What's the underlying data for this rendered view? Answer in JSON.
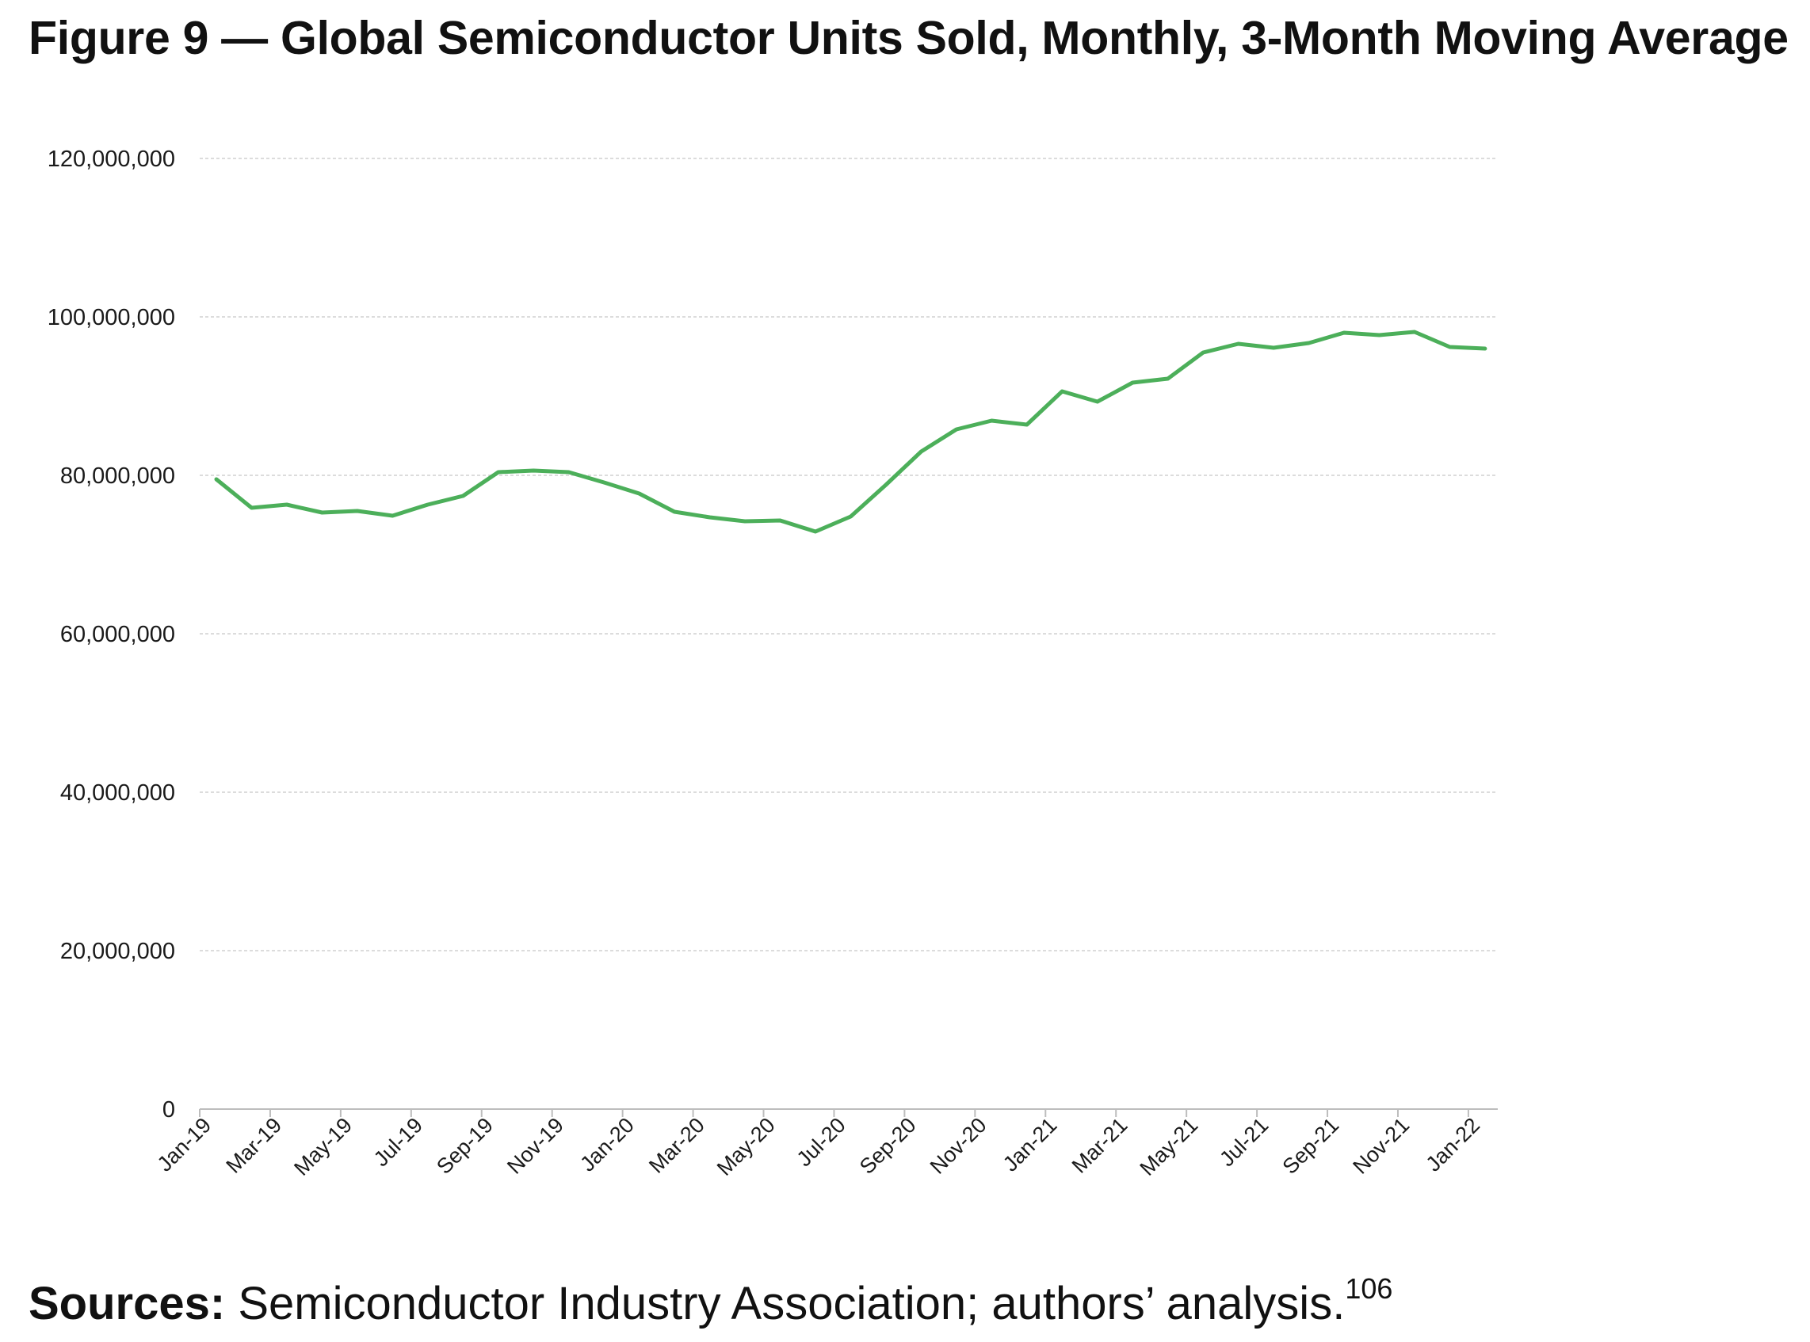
{
  "title": "Figure 9 — Global Semiconductor Units Sold, Monthly, 3-Month Moving Average",
  "sources": {
    "lead": "Sources:",
    "text": " Semiconductor Industry Association; authors’ analysis.",
    "footnote": "106"
  },
  "chart_data": {
    "type": "line",
    "ylim": [
      0,
      120000000
    ],
    "y_ticks": [
      0,
      20000000,
      40000000,
      60000000,
      80000000,
      100000000,
      120000000
    ],
    "y_tick_labels": [
      "0",
      "20,000,000",
      "40,000,000",
      "60,000,000",
      "80,000,000",
      "100,000,000",
      "120,000,000"
    ],
    "x_tick_labels": [
      "Jan-19",
      "Mar-19",
      "May-19",
      "Jul-19",
      "Sep-19",
      "Nov-19",
      "Jan-20",
      "Mar-20",
      "May-20",
      "Jul-20",
      "Sep-20",
      "Nov-20",
      "Jan-21",
      "Mar-21",
      "May-21",
      "Jul-21",
      "Sep-21",
      "Nov-21",
      "Jan-22"
    ],
    "grid": true,
    "line_color": "#4caf5a",
    "series": [
      {
        "x": [
          "Jan-19",
          "Feb-19",
          "Mar-19",
          "Apr-19",
          "May-19",
          "Jun-19",
          "Jul-19",
          "Aug-19",
          "Sep-19",
          "Oct-19",
          "Nov-19",
          "Dec-19",
          "Jan-20",
          "Feb-20",
          "Mar-20",
          "Apr-20",
          "May-20",
          "Jun-20",
          "Jul-20",
          "Aug-20",
          "Sep-20",
          "Oct-20",
          "Nov-20",
          "Dec-20",
          "Jan-21",
          "Feb-21",
          "Mar-21",
          "Apr-21",
          "May-21",
          "Jun-21",
          "Jul-21",
          "Aug-21",
          "Sep-21",
          "Oct-21",
          "Nov-21",
          "Dec-21",
          "Jan-22"
        ],
        "values": [
          79500000,
          75900000,
          76300000,
          75300000,
          75500000,
          74900000,
          76300000,
          77400000,
          80400000,
          80600000,
          80400000,
          79100000,
          77700000,
          75400000,
          74700000,
          74200000,
          74300000,
          72900000,
          74800000,
          78800000,
          83000000,
          85800000,
          86900000,
          86400000,
          90600000,
          89300000,
          91700000,
          92200000,
          95500000,
          96600000,
          96100000,
          96700000,
          98000000,
          97700000,
          98100000,
          96200000,
          96000000
        ]
      }
    ]
  }
}
